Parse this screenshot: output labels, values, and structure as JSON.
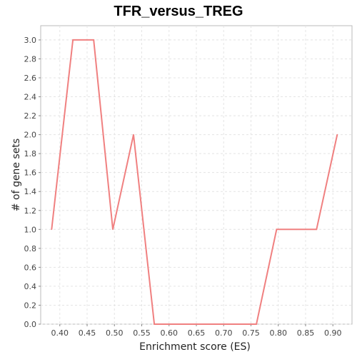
{
  "chart_data": {
    "type": "line",
    "title": "TFR_versus_TREG",
    "xlabel": "Enrichment score (ES)",
    "ylabel": "# of gene sets",
    "xlim": [
      0.365,
      0.935
    ],
    "ylim": [
      0.0,
      3.15
    ],
    "x_ticks": [
      "0.40",
      "0.45",
      "0.50",
      "0.55",
      "0.60",
      "0.65",
      "0.70",
      "0.75",
      "0.80",
      "0.85",
      "0.90"
    ],
    "y_ticks": [
      "0.0",
      "0.2",
      "0.4",
      "0.6",
      "0.8",
      "1.0",
      "1.2",
      "1.4",
      "1.6",
      "1.8",
      "2.0",
      "2.2",
      "2.4",
      "2.6",
      "2.8",
      "3.0"
    ],
    "grid": true,
    "series": [
      {
        "color": "#f08080",
        "x": [
          0.385,
          0.424,
          0.462,
          0.497,
          0.535,
          0.573,
          0.612,
          0.65,
          0.686,
          0.722,
          0.76,
          0.797,
          0.834,
          0.87,
          0.908
        ],
        "y": [
          1,
          3,
          3,
          1,
          2,
          0,
          0,
          0,
          0,
          0,
          0,
          1,
          1,
          1,
          2
        ]
      }
    ]
  }
}
